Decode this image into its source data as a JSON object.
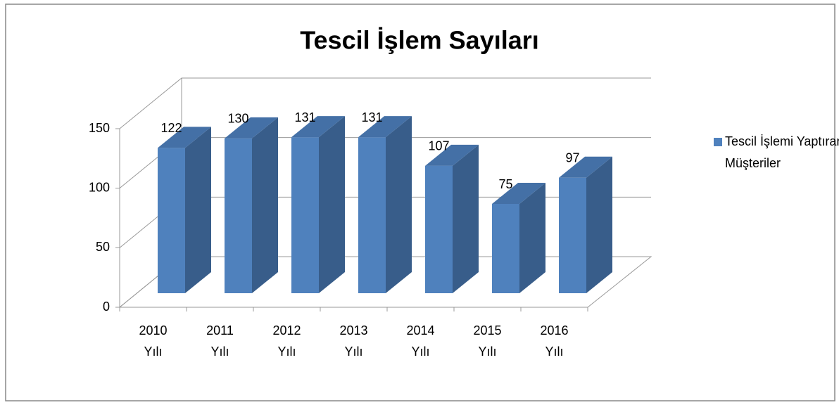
{
  "chart_data": {
    "type": "bar3d",
    "title": "Tescil İşlem Sayıları",
    "categories": [
      "2010 Yılı",
      "2011 Yılı",
      "2012 Yılı",
      "2013 Yılı",
      "2014 Yılı",
      "2015 Yılı",
      "2016 Yılı"
    ],
    "series": [
      {
        "name": "Tescil İşlemi Yaptıran Müşteriler",
        "color": "#4f81bd",
        "values": [
          122,
          130,
          131,
          131,
          107,
          75,
          97
        ]
      }
    ],
    "ylim": [
      0,
      150
    ],
    "yticks": [
      0,
      50,
      100,
      150
    ],
    "grid": true,
    "legend": "right"
  }
}
